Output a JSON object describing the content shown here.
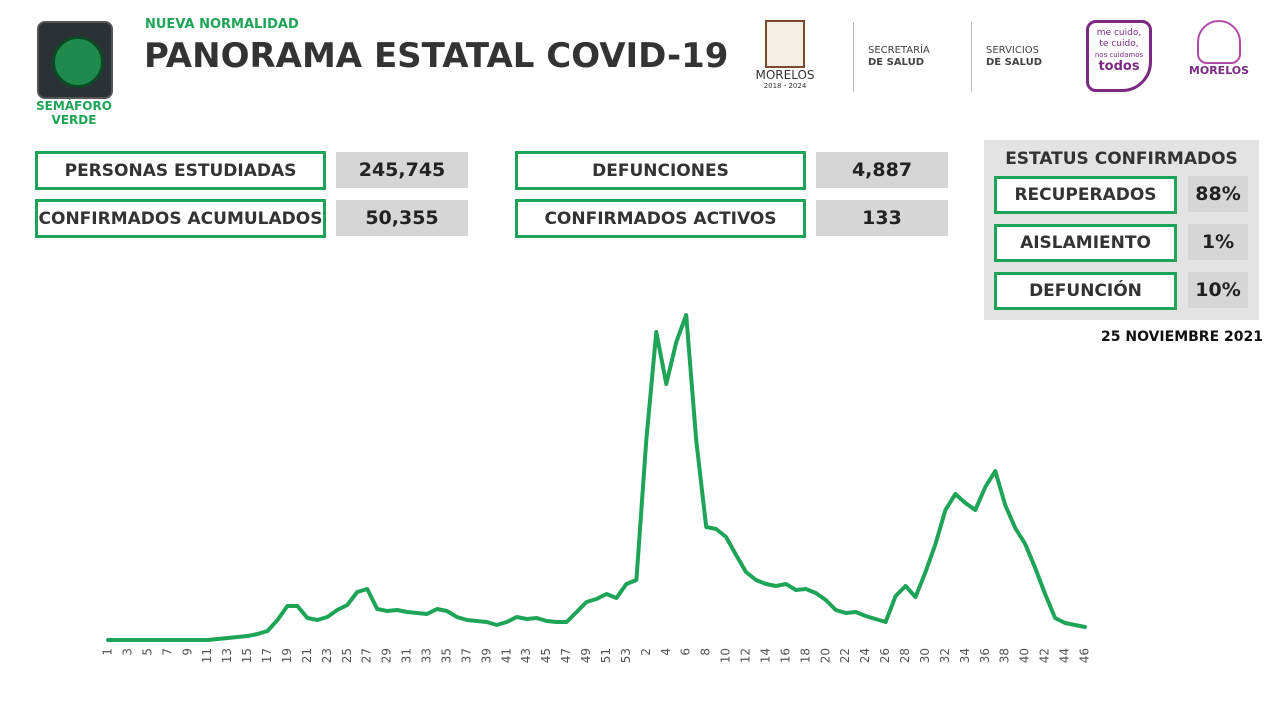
{
  "header": {
    "semaforo": [
      "SEMÁFORO",
      "VERDE"
    ],
    "kicker": "NUEVA NORMALIDAD",
    "title": "PANORAMA ESTATAL COVID-19",
    "logos": {
      "morelos": "MORELOS",
      "period": "2018 - 2024",
      "secretaria": [
        "SECRETARÍA",
        "DE SALUD"
      ],
      "servicios": [
        "SERVICIOS",
        "DE SALUD"
      ],
      "campaign": [
        "me cuido,",
        "te cuido,",
        "nos cuidamos",
        "todos"
      ],
      "morelos2": "MORELOS"
    }
  },
  "stats": [
    {
      "label": "PERSONAS ESTUDIADAS",
      "value": "245,745"
    },
    {
      "label": "CONFIRMADOS ACUMULADOS",
      "value": "50,355"
    },
    {
      "label": "DEFUNCIONES",
      "value": "4,887"
    },
    {
      "label": "CONFIRMADOS ACTIVOS",
      "value": "133"
    }
  ],
  "status": {
    "title": "ESTATUS CONFIRMADOS",
    "rows": [
      {
        "label": "RECUPERADOS",
        "value": "88%"
      },
      {
        "label": "AISLAMIENTO",
        "value": "1%"
      },
      {
        "label": "DEFUNCIÓN",
        "value": "10%"
      }
    ]
  },
  "date": "25 NOVIEMBRE 2021",
  "chart_data": {
    "type": "line",
    "color": "#1ea456",
    "categories": [
      "1",
      null,
      "3",
      null,
      "5",
      null,
      "7",
      null,
      "9",
      null,
      "11",
      null,
      "13",
      null,
      "15",
      null,
      "17",
      null,
      "19",
      null,
      "21",
      null,
      "23",
      null,
      "25",
      null,
      "27",
      null,
      "29",
      null,
      "31",
      null,
      "33",
      null,
      "35",
      null,
      "37",
      null,
      "39",
      null,
      "41",
      null,
      "43",
      null,
      "45",
      null,
      "47",
      null,
      "49",
      null,
      "51",
      null,
      "53",
      null,
      "2",
      null,
      "4",
      null,
      "6",
      null,
      "8",
      null,
      "10",
      null,
      "12",
      null,
      "14",
      null,
      "16",
      null,
      "18",
      null,
      "20",
      null,
      "22",
      null,
      "24",
      null,
      "26",
      null,
      "28",
      null,
      "30",
      null,
      "32",
      null,
      "34",
      null,
      "36",
      null,
      "38",
      null,
      "40",
      null,
      "42",
      null,
      "44",
      null,
      "46"
    ],
    "values": [
      0,
      0,
      0,
      0,
      0,
      0,
      0,
      0,
      0,
      0,
      0,
      1,
      2,
      3,
      4,
      6,
      9,
      20,
      34,
      34,
      22,
      20,
      23,
      30,
      35,
      48,
      51,
      31,
      29,
      30,
      28,
      27,
      26,
      31,
      29,
      23,
      20,
      19,
      18,
      15,
      18,
      23,
      21,
      22,
      19,
      18,
      18,
      28,
      38,
      41,
      46,
      42,
      56,
      60,
      200,
      308,
      256,
      298,
      325,
      200,
      113,
      111,
      103,
      85,
      68,
      60,
      56,
      54,
      56,
      50,
      51,
      47,
      40,
      30,
      27,
      28,
      24,
      21,
      18,
      44,
      54,
      43,
      68,
      96,
      130,
      146,
      137,
      130,
      153,
      169,
      135,
      112,
      96,
      72,
      46,
      22,
      17,
      15,
      13
    ]
  }
}
